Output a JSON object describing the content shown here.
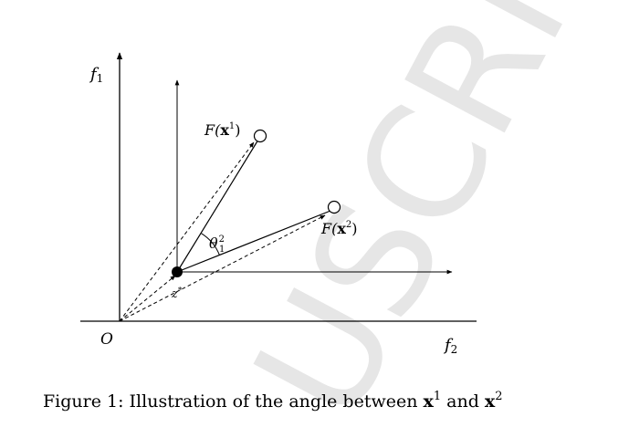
{
  "diagram": {
    "axis_f1_label": "f",
    "axis_f1_sub": "1",
    "axis_f2_label": "f",
    "axis_f2_sub": "2",
    "origin_label": "O",
    "point1_label_prefix": "F(",
    "point1_label_bold": "x",
    "point1_label_sup": "1",
    "point1_label_suffix": ")",
    "point2_label_prefix": "F(",
    "point2_label_bold": "x",
    "point2_label_sup": "2",
    "point2_label_suffix": ")",
    "angle_label": "θ",
    "angle_sup": "2",
    "angle_sub": "1",
    "ref_point_label": "z",
    "ref_point_sup": "*"
  },
  "caption": {
    "prefix": "Figure 1: Illustration of the angle between ",
    "bold1": "x",
    "sup1": "1",
    "middle": " and ",
    "bold2": "x",
    "sup2": "2"
  },
  "watermark": {
    "text": "USCRIPT",
    "color": "#e6e6e6"
  }
}
